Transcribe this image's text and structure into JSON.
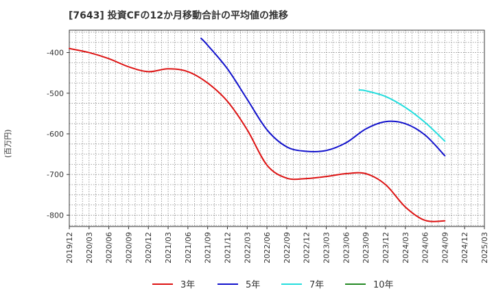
{
  "chart_data": {
    "type": "line",
    "title": "[7643]  投資CFの12か月移動合計の平均値の推移",
    "ylabel": "(百万円)",
    "xlabel": "",
    "x_ticks": [
      "2019/12",
      "2020/03",
      "2020/06",
      "2020/09",
      "2020/12",
      "2021/03",
      "2021/06",
      "2021/09",
      "2021/12",
      "2022/03",
      "2022/06",
      "2022/09",
      "2022/12",
      "2023/03",
      "2023/06",
      "2023/09",
      "2023/12",
      "2024/03",
      "2024/06",
      "2024/09",
      "2024/12",
      "2025/03"
    ],
    "y_ticks": [
      -400,
      -500,
      -600,
      -700,
      -800
    ],
    "ylim": [
      -828,
      -345
    ],
    "grid": true,
    "legend_position": "bottom",
    "series": [
      {
        "name": "3年",
        "color": "#dd1111",
        "points": [
          [
            "2019/12",
            -390
          ],
          [
            "2020/03",
            -400
          ],
          [
            "2020/06",
            -415
          ],
          [
            "2020/09",
            -435
          ],
          [
            "2020/12",
            -447
          ],
          [
            "2021/03",
            -440
          ],
          [
            "2021/06",
            -447
          ],
          [
            "2021/09",
            -475
          ],
          [
            "2021/12",
            -520
          ],
          [
            "2022/03",
            -590
          ],
          [
            "2022/06",
            -677
          ],
          [
            "2022/09",
            -709
          ],
          [
            "2022/12",
            -710
          ],
          [
            "2023/03",
            -705
          ],
          [
            "2023/06",
            -698
          ],
          [
            "2023/09",
            -698
          ],
          [
            "2023/12",
            -725
          ],
          [
            "2024/03",
            -780
          ],
          [
            "2024/06",
            -813
          ],
          [
            "2024/09",
            -814
          ]
        ]
      },
      {
        "name": "5年",
        "color": "#1111cc",
        "points": [
          [
            "2021/08",
            -365
          ],
          [
            "2021/09",
            -382
          ],
          [
            "2021/12",
            -440
          ],
          [
            "2022/03",
            -515
          ],
          [
            "2022/06",
            -590
          ],
          [
            "2022/09",
            -632
          ],
          [
            "2022/12",
            -643
          ],
          [
            "2023/03",
            -641
          ],
          [
            "2023/06",
            -622
          ],
          [
            "2023/09",
            -588
          ],
          [
            "2023/12",
            -570
          ],
          [
            "2024/03",
            -575
          ],
          [
            "2024/06",
            -603
          ],
          [
            "2024/09",
            -654
          ]
        ]
      },
      {
        "name": "7年",
        "color": "#22dddd",
        "points": [
          [
            "2023/08",
            -492
          ],
          [
            "2023/09",
            -494
          ],
          [
            "2023/12",
            -508
          ],
          [
            "2024/03",
            -535
          ],
          [
            "2024/06",
            -572
          ],
          [
            "2024/09",
            -618
          ]
        ]
      },
      {
        "name": "10年",
        "color": "#228822",
        "points": []
      }
    ]
  }
}
